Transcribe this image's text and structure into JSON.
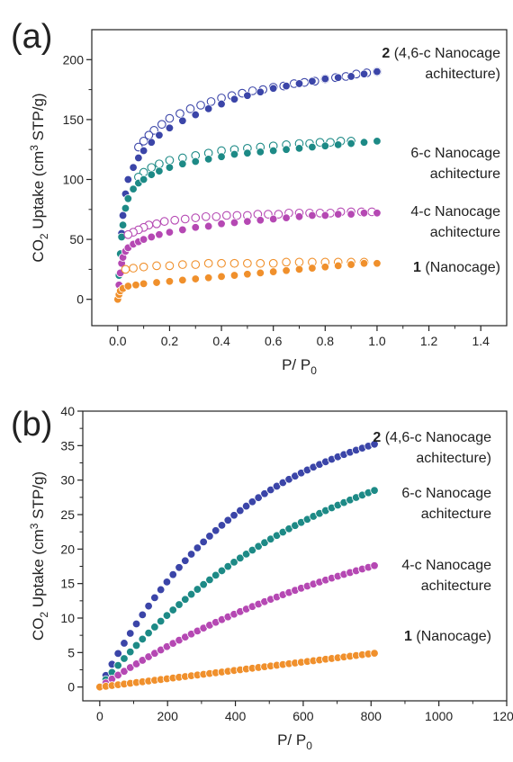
{
  "chart_data": [
    {
      "panel_label": "(a)",
      "type": "scatter",
      "xlabel": "P/ P",
      "xlabel_sub": "0",
      "ylabel_pre": "CO",
      "ylabel_sub": "2",
      "ylabel_mid": " Uptake (cm",
      "ylabel_sup": "3",
      "ylabel_post": " STP/g)",
      "xlim": [
        -0.1,
        1.5
      ],
      "ylim": [
        -22,
        225
      ],
      "x_ticks": [
        0.0,
        0.2,
        0.4,
        0.6,
        0.8,
        1.0,
        1.2,
        1.4
      ],
      "x_tick_labels": [
        "0.0",
        "0.2",
        "0.4",
        "0.6",
        "0.8",
        "1.0",
        "1.2",
        "1.4"
      ],
      "y_ticks": [
        0,
        50,
        100,
        150,
        200
      ],
      "y_tick_labels": [
        "0",
        "50",
        "100",
        "150",
        "200"
      ],
      "series": [
        {
          "color": "#3b45a8",
          "label_lines": [
            {
              "bold": "2",
              "rest": " (4,6-c Nanocage"
            },
            {
              "bold": "",
              "rest": "achitecture)"
            }
          ],
          "adsorption": {
            "x": [
              0.0,
              0.005,
              0.01,
              0.015,
              0.02,
              0.03,
              0.04,
              0.06,
              0.08,
              0.1,
              0.13,
              0.16,
              0.2,
              0.25,
              0.3,
              0.35,
              0.4,
              0.45,
              0.5,
              0.55,
              0.6,
              0.65,
              0.7,
              0.75,
              0.8,
              0.85,
              0.9,
              0.95,
              1.0
            ],
            "y": [
              0,
              20,
              38,
              55,
              70,
              88,
              100,
              110,
              118,
              124,
              131,
              137,
              143,
              149,
              154,
              159,
              163,
              167,
              170,
              173,
              176,
              178,
              180,
              182,
              184,
              185,
              186,
              188,
              190
            ]
          },
          "desorption": {
            "x": [
              1.0,
              0.96,
              0.92,
              0.88,
              0.84,
              0.8,
              0.76,
              0.72,
              0.68,
              0.64,
              0.6,
              0.56,
              0.52,
              0.48,
              0.44,
              0.4,
              0.36,
              0.32,
              0.28,
              0.24,
              0.2,
              0.17,
              0.14,
              0.12,
              0.1,
              0.08
            ],
            "y": [
              190,
              189,
              188,
              186,
              185,
              184,
              182,
              181,
              180,
              178,
              177,
              175,
              174,
              172,
              170,
              168,
              165,
              162,
              159,
              155,
              151,
              146,
              141,
              137,
              132,
              127
            ]
          }
        },
        {
          "color": "#1d8a86",
          "label_lines": [
            {
              "bold": "",
              "rest": "6-c Nanocage"
            },
            {
              "bold": "",
              "rest": "achitecture"
            }
          ],
          "adsorption": {
            "x": [
              0.0,
              0.005,
              0.01,
              0.015,
              0.02,
              0.03,
              0.04,
              0.06,
              0.08,
              0.1,
              0.13,
              0.16,
              0.2,
              0.25,
              0.3,
              0.35,
              0.4,
              0.45,
              0.5,
              0.55,
              0.6,
              0.65,
              0.7,
              0.75,
              0.8,
              0.85,
              0.9,
              0.95,
              1.0
            ],
            "y": [
              0,
              20,
              38,
              52,
              62,
              76,
              84,
              92,
              97,
              100,
              104,
              107,
              110,
              113,
              115,
              117,
              119,
              121,
              122,
              123,
              124,
              125,
              126,
              127,
              128,
              129,
              130,
              131,
              132
            ]
          },
          "desorption": {
            "x": [
              0.9,
              0.86,
              0.82,
              0.78,
              0.74,
              0.7,
              0.65,
              0.6,
              0.55,
              0.5,
              0.45,
              0.4,
              0.35,
              0.3,
              0.25,
              0.2,
              0.16,
              0.13,
              0.1,
              0.08
            ],
            "y": [
              132,
              132,
              131,
              131,
              130,
              130,
              129,
              128,
              127,
              126,
              125,
              124,
              122,
              120,
              118,
              116,
              113,
              110,
              106,
              102
            ]
          }
        },
        {
          "color": "#b548b3",
          "label_lines": [
            {
              "bold": "",
              "rest": "4-c Nanocage"
            },
            {
              "bold": "",
              "rest": "achitecture"
            }
          ],
          "adsorption": {
            "x": [
              0.0,
              0.005,
              0.01,
              0.015,
              0.02,
              0.03,
              0.04,
              0.06,
              0.08,
              0.1,
              0.13,
              0.16,
              0.2,
              0.25,
              0.3,
              0.35,
              0.4,
              0.45,
              0.5,
              0.55,
              0.6,
              0.65,
              0.7,
              0.75,
              0.8,
              0.85,
              0.9,
              0.95,
              1.0
            ],
            "y": [
              0,
              12,
              22,
              30,
              35,
              40,
              43,
              46,
              48,
              50,
              52,
              54,
              56,
              58,
              60,
              61,
              63,
              64,
              65,
              66,
              67,
              68,
              69,
              70,
              70,
              71,
              71,
              72,
              72
            ]
          },
          "desorption": {
            "x": [
              0.98,
              0.94,
              0.9,
              0.86,
              0.82,
              0.78,
              0.74,
              0.7,
              0.66,
              0.62,
              0.58,
              0.54,
              0.5,
              0.46,
              0.42,
              0.38,
              0.34,
              0.3,
              0.26,
              0.22,
              0.18,
              0.15,
              0.12,
              0.1,
              0.08,
              0.06,
              0.04
            ],
            "y": [
              73,
              73,
              73,
              73,
              72,
              72,
              72,
              72,
              72,
              71,
              71,
              71,
              70,
              70,
              70,
              69,
              69,
              68,
              67,
              66,
              65,
              63,
              62,
              60,
              58,
              56,
              54
            ]
          }
        },
        {
          "color": "#f0902c",
          "label_lines": [
            {
              "bold": "1",
              "rest": " (Nanocage)"
            }
          ],
          "adsorption": {
            "x": [
              0.0,
              0.005,
              0.01,
              0.02,
              0.04,
              0.07,
              0.1,
              0.15,
              0.2,
              0.25,
              0.3,
              0.35,
              0.4,
              0.45,
              0.5,
              0.55,
              0.6,
              0.65,
              0.7,
              0.75,
              0.8,
              0.85,
              0.9,
              0.95,
              1.0
            ],
            "y": [
              0,
              4,
              7,
              9,
              11,
              12,
              13,
              14,
              15,
              16,
              17,
              18,
              19,
              20,
              21,
              22,
              23,
              24,
              25,
              26,
              27,
              28,
              29,
              30,
              30
            ]
          },
          "desorption": {
            "x": [
              0.95,
              0.9,
              0.85,
              0.8,
              0.75,
              0.7,
              0.65,
              0.6,
              0.55,
              0.5,
              0.45,
              0.4,
              0.35,
              0.3,
              0.25,
              0.2,
              0.15,
              0.1,
              0.06,
              0.03
            ],
            "y": [
              31,
              31,
              31,
              31,
              31,
              31,
              31,
              30,
              30,
              30,
              30,
              30,
              30,
              29,
              29,
              28,
              28,
              27,
              26,
              25
            ]
          }
        }
      ]
    },
    {
      "panel_label": "(b)",
      "type": "scatter",
      "xlabel": "P/ P",
      "xlabel_sub": "0",
      "ylabel_pre": "CO",
      "ylabel_sub": "2",
      "ylabel_mid": " Uptake (cm",
      "ylabel_sup": "3",
      "ylabel_post": " STP/g)",
      "xlim": [
        -50,
        1200
      ],
      "ylim": [
        -2,
        40
      ],
      "x_ticks": [
        0,
        200,
        400,
        600,
        800,
        1000,
        1200
      ],
      "x_tick_labels": [
        "0",
        "200",
        "400",
        "600",
        "800",
        "1000",
        "1200"
      ],
      "y_ticks": [
        0,
        5,
        10,
        15,
        20,
        25,
        30,
        35,
        40
      ],
      "y_tick_labels": [
        "0",
        "5",
        "10",
        "15",
        "20",
        "25",
        "30",
        "35",
        "40"
      ],
      "series": [
        {
          "color": "#3b45a8",
          "label_lines": [
            {
              "bold": "2",
              "rest": " (4,6-c Nanocage"
            },
            {
              "bold": "",
              "rest": "achitecture)"
            }
          ],
          "curve": {
            "x_start": 0,
            "x_end": 810,
            "n": 46,
            "y_end": 35.2,
            "shape": 0.62
          }
        },
        {
          "color": "#1d8a86",
          "label_lines": [
            {
              "bold": "",
              "rest": "6-c Nanocage"
            },
            {
              "bold": "",
              "rest": "achitecture"
            }
          ],
          "curve": {
            "x_start": 0,
            "x_end": 810,
            "n": 46,
            "y_end": 28.5,
            "shape": 0.4
          }
        },
        {
          "color": "#b548b3",
          "label_lines": [
            {
              "bold": "",
              "rest": "4-c Nanocage"
            },
            {
              "bold": "",
              "rest": "achitecture"
            }
          ],
          "curve": {
            "x_start": 0,
            "x_end": 810,
            "n": 46,
            "y_end": 17.6,
            "shape": 0.3
          }
        },
        {
          "color": "#f0902c",
          "label_lines": [
            {
              "bold": "1",
              "rest": " (Nanocage)"
            }
          ],
          "curve": {
            "x_start": 0,
            "x_end": 810,
            "n": 46,
            "y_end": 4.9,
            "shape": 0.12
          }
        }
      ]
    }
  ]
}
